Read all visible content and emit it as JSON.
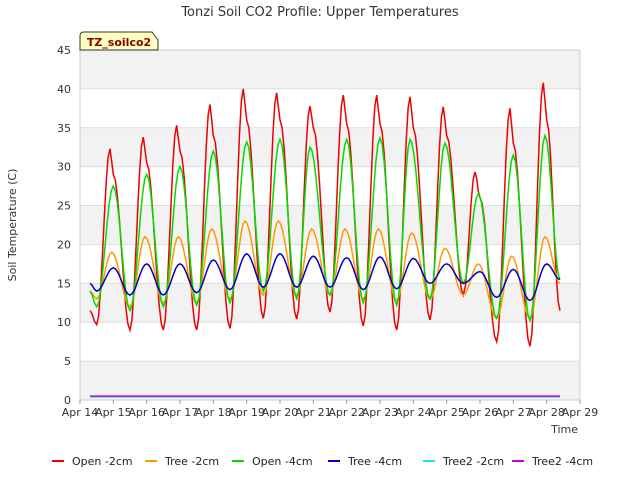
{
  "chart_data": {
    "type": "line",
    "title": "Tonzi Soil CO2 Profile: Upper Temperatures",
    "xlabel": "Time",
    "ylabel": "Soil Temperature (C)",
    "badge": "TZ_soilco2",
    "ylim": [
      0,
      45
    ],
    "yticks": [
      0,
      5,
      10,
      15,
      20,
      25,
      30,
      35,
      40,
      45
    ],
    "xlim": [
      0,
      15
    ],
    "xticks": [
      0,
      1,
      2,
      3,
      4,
      5,
      6,
      7,
      8,
      9,
      10,
      11,
      12,
      13,
      14,
      15
    ],
    "x_tick_labels": [
      "Apr 14",
      "Apr 15",
      "Apr 16",
      "Apr 17",
      "Apr 18",
      "Apr 19",
      "Apr 20",
      "Apr 21",
      "Apr 22",
      "Apr 23",
      "Apr 24",
      "Apr 25",
      "Apr 26",
      "Apr 27",
      "Apr 28",
      "Apr 29"
    ],
    "x_unit": "days since Apr 14",
    "grid": "horizontal bands",
    "legend_position": "bottom",
    "series": [
      {
        "name": "Open -2cm",
        "color": "#ee0000",
        "x": [
          0.3,
          0.5,
          0.9,
          1.0,
          1.5,
          1.9,
          2.0,
          2.5,
          2.9,
          3.0,
          3.5,
          3.9,
          4.0,
          4.5,
          4.9,
          5.0,
          5.5,
          5.9,
          6.0,
          6.5,
          6.9,
          7.0,
          7.5,
          7.9,
          8.0,
          8.5,
          8.9,
          9.0,
          9.5,
          9.9,
          10.0,
          10.5,
          10.9,
          11.0,
          11.5,
          11.85,
          12.0,
          12.5,
          12.9,
          13.0,
          13.5,
          13.9,
          14.0,
          14.4
        ],
        "y": [
          11.5,
          9.7,
          32.3,
          29.0,
          9.0,
          33.8,
          30.5,
          9.0,
          35.3,
          32.0,
          9.0,
          38.0,
          34.0,
          9.2,
          40.0,
          36.0,
          10.5,
          39.5,
          36.0,
          10.4,
          37.8,
          35.0,
          11.3,
          39.2,
          35.5,
          9.5,
          39.2,
          35.5,
          9.0,
          39.0,
          35.0,
          10.3,
          37.7,
          34.0,
          13.5,
          29.3,
          26.0,
          7.5,
          37.5,
          33.0,
          6.9,
          40.8,
          36.0,
          11.5
        ]
      },
      {
        "name": "Tree -2cm",
        "color": "#ff9900",
        "x": [
          0.3,
          0.5,
          0.95,
          1.5,
          1.95,
          2.5,
          2.95,
          3.5,
          3.95,
          4.5,
          4.95,
          5.5,
          5.95,
          6.5,
          6.95,
          7.5,
          7.95,
          8.5,
          8.95,
          9.5,
          9.95,
          10.5,
          10.95,
          11.5,
          11.95,
          12.5,
          12.95,
          13.5,
          13.95,
          14.4
        ],
        "y": [
          14.0,
          13.0,
          19.0,
          12.0,
          21.0,
          12.5,
          21.0,
          12.5,
          22.0,
          13.0,
          23.0,
          13.5,
          23.0,
          13.5,
          22.0,
          13.5,
          22.0,
          13.0,
          22.0,
          12.8,
          21.5,
          13.0,
          19.5,
          13.5,
          17.5,
          10.5,
          18.5,
          10.5,
          21.0,
          15.0
        ]
      },
      {
        "name": "Open -4cm",
        "color": "#00dd00",
        "x": [
          0.3,
          0.5,
          1.0,
          1.5,
          2.0,
          2.5,
          3.0,
          3.5,
          4.0,
          4.5,
          5.0,
          5.5,
          6.0,
          6.5,
          6.9,
          7.5,
          8.0,
          8.5,
          9.0,
          9.5,
          9.9,
          10.5,
          10.95,
          11.5,
          11.95,
          12.5,
          13.0,
          13.5,
          13.95,
          14.4
        ],
        "y": [
          14.0,
          12.0,
          27.5,
          11.5,
          29.0,
          12.0,
          30.0,
          12.2,
          32.0,
          12.5,
          33.2,
          14.0,
          33.5,
          13.0,
          32.5,
          13.5,
          33.5,
          12.5,
          33.7,
          12.2,
          33.5,
          13.0,
          33.0,
          15.0,
          26.5,
          10.5,
          31.5,
          10.2,
          34.0,
          15.5
        ]
      },
      {
        "name": "Tree -4cm",
        "color": "#0000cc",
        "x": [
          0.3,
          0.5,
          1.0,
          1.5,
          2.0,
          2.5,
          3.0,
          3.5,
          4.0,
          4.5,
          5.0,
          5.5,
          6.0,
          6.5,
          7.0,
          7.5,
          8.0,
          8.5,
          9.0,
          9.5,
          10.0,
          10.5,
          11.0,
          11.5,
          12.0,
          12.5,
          13.0,
          13.5,
          14.0,
          14.4
        ],
        "y": [
          15.0,
          14.0,
          17.0,
          13.5,
          17.5,
          13.5,
          17.5,
          13.8,
          18.0,
          14.2,
          18.8,
          14.5,
          18.8,
          14.5,
          18.5,
          14.5,
          18.3,
          14.2,
          18.4,
          14.3,
          18.2,
          15.0,
          17.5,
          15.0,
          16.5,
          13.2,
          16.8,
          12.8,
          17.5,
          15.5
        ]
      },
      {
        "name": "Tree2 -2cm",
        "color": "#00eeee",
        "x": [
          0.3,
          14.4
        ],
        "y": [
          0.4,
          0.4
        ]
      },
      {
        "name": "Tree2 -4cm",
        "color": "#cc00cc",
        "x": [
          0.3,
          14.4
        ],
        "y": [
          0.5,
          0.5
        ]
      }
    ]
  }
}
